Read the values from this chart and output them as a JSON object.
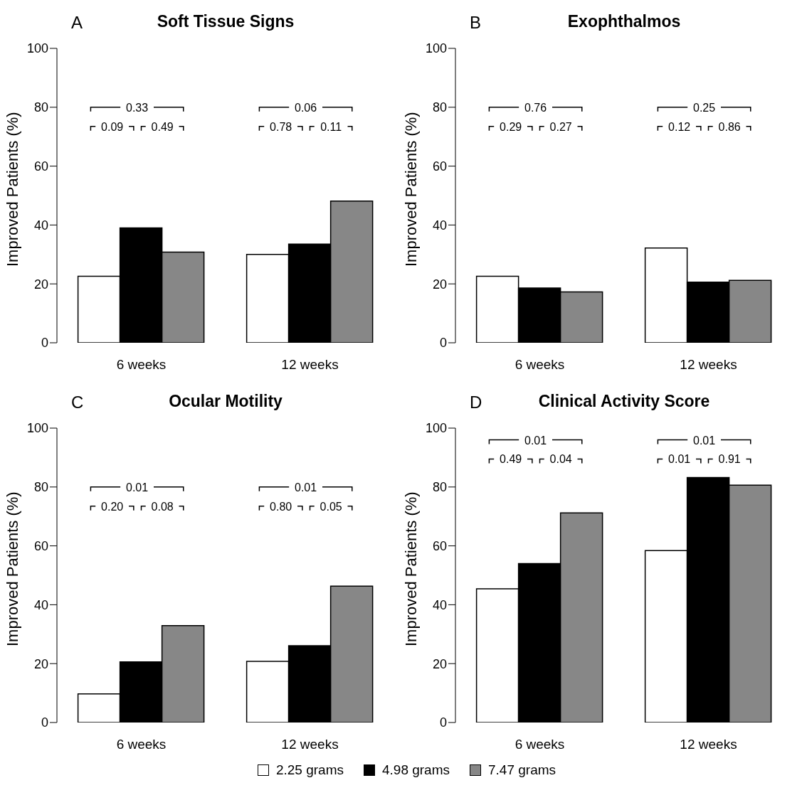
{
  "chart_data": [
    {
      "type": "bar",
      "title": "Soft Tissue Signs",
      "ylabel": "Improved Patients (%)",
      "categories": [
        "6 weeks",
        "12 weeks"
      ],
      "ylim": [
        0,
        100
      ],
      "yticks": [
        0,
        20,
        40,
        60,
        80,
        100
      ],
      "legend": false,
      "grid": false,
      "series": [
        {
          "color": "#ffffff",
          "values": [
            22.6,
            30
          ]
        },
        {
          "color": "#000000",
          "values": [
            39,
            33.5
          ]
        },
        {
          "color": "#878787",
          "values": [
            30.8,
            48.1
          ]
        }
      ],
      "annotations": [
        "A",
        "0.33",
        "0.09",
        "0.49",
        "0.06",
        "0.78",
        "0.11"
      ]
    },
    {
      "type": "bar",
      "title": "Exophthalmos",
      "ylabel": "Improved Patients (%)",
      "categories": [
        "6 weeks",
        "12 weeks"
      ],
      "ylim": [
        0,
        100
      ],
      "yticks": [
        0,
        20,
        40,
        60,
        80,
        100
      ],
      "legend": false,
      "grid": false,
      "series": [
        {
          "color": "#ffffff",
          "values": [
            22.6,
            32.2
          ]
        },
        {
          "color": "#000000",
          "values": [
            18.6,
            20.6
          ]
        },
        {
          "color": "#878787",
          "values": [
            17.3,
            21.2
          ]
        }
      ],
      "annotations": [
        "B",
        "0.76",
        "0.29",
        "0.27",
        "0.25",
        "0.12",
        "0.86"
      ]
    },
    {
      "type": "bar",
      "title": "Ocular Motility",
      "ylabel": "Improved Patients (%)",
      "categories": [
        "6 weeks",
        "12 weeks"
      ],
      "ylim": [
        0,
        100
      ],
      "yticks": [
        0,
        20,
        40,
        60,
        80,
        100
      ],
      "legend": false,
      "grid": false,
      "series": [
        {
          "color": "#ffffff",
          "values": [
            9.7,
            20.8
          ]
        },
        {
          "color": "#000000",
          "values": [
            20.6,
            26.1
          ]
        },
        {
          "color": "#878787",
          "values": [
            32.9,
            46.3
          ]
        }
      ],
      "annotations": [
        "C",
        "0.01",
        "0.20",
        "0.08",
        "0.01",
        "0.80",
        "0.05"
      ]
    },
    {
      "type": "bar",
      "title": "Clinical Activity Score",
      "ylabel": "Improved Patients (%)",
      "categories": [
        "6 weeks",
        "12 weeks"
      ],
      "ylim": [
        0,
        100
      ],
      "yticks": [
        0,
        20,
        40,
        60,
        80,
        100
      ],
      "legend": "bottom",
      "grid": false,
      "series": [
        {
          "name": "2.25 grams",
          "color": "#ffffff",
          "values": [
            45.4,
            58.4
          ]
        },
        {
          "name": "4.98 grams",
          "color": "#000000",
          "values": [
            54,
            83.2
          ]
        },
        {
          "name": "7.47 grams",
          "color": "#878787",
          "values": [
            71.2,
            80.6
          ]
        }
      ],
      "annotations": [
        "D",
        "0.01",
        "0.49",
        "0.04",
        "0.01",
        "0.01",
        "0.91"
      ]
    }
  ]
}
